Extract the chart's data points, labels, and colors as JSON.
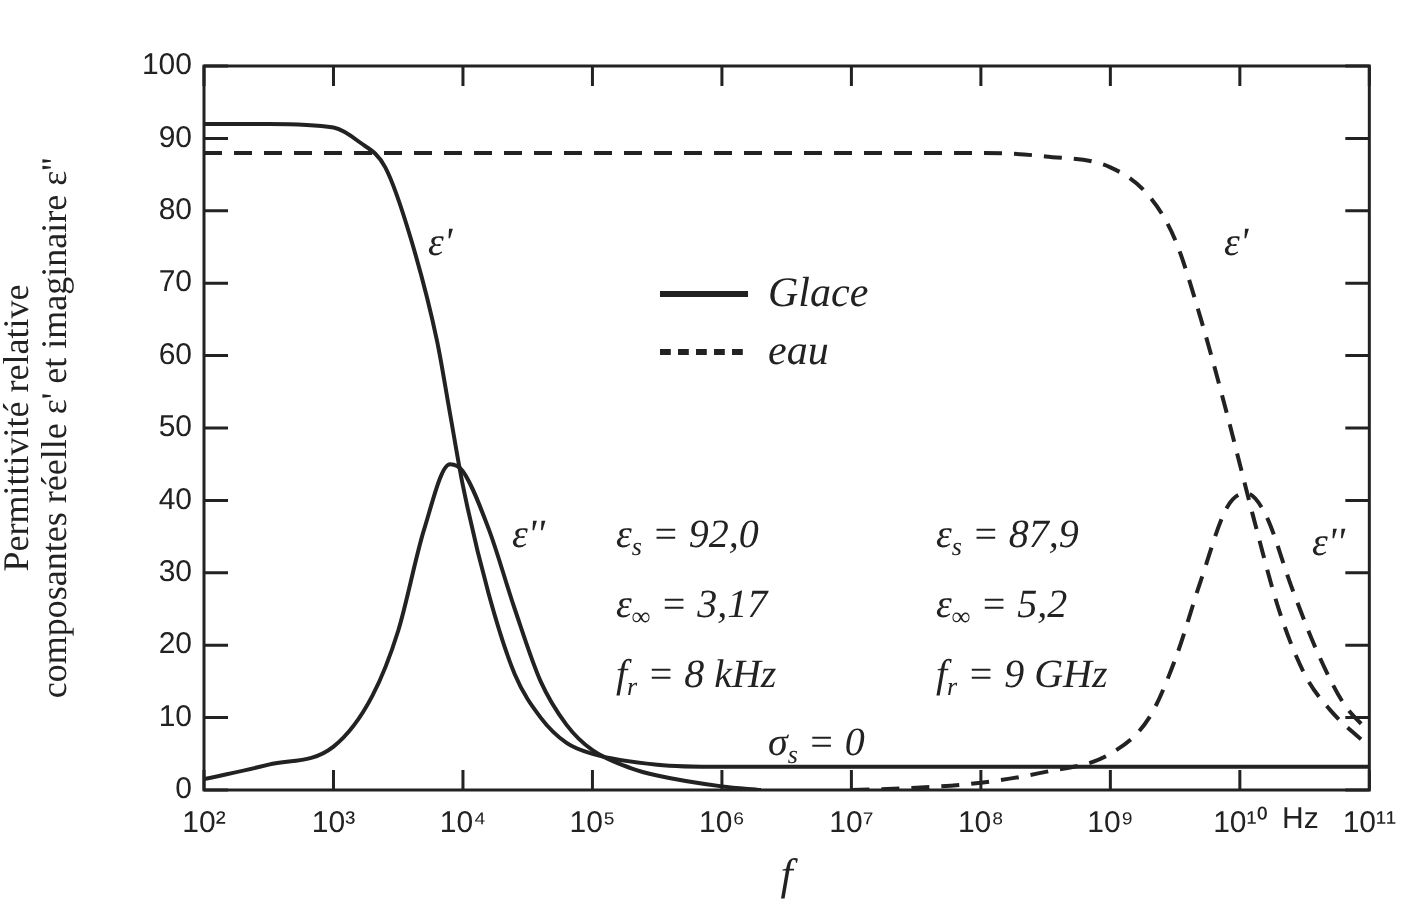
{
  "chart_data": {
    "type": "line",
    "xlabel": "f",
    "ylabel": "Permittivité relative\ncomposantes réelle ε' et imaginaire ε''",
    "log": "x",
    "xlim": [
      100,
      100000000000
    ],
    "xticks": [
      {
        "value": 100,
        "label": "10²"
      },
      {
        "value": 1000,
        "label": "10³"
      },
      {
        "value": 10000,
        "label": "10⁴"
      },
      {
        "value": 100000,
        "label": "10⁵"
      },
      {
        "value": 1000000,
        "label": "10⁶"
      },
      {
        "value": 10000000,
        "label": "10⁷"
      },
      {
        "value": 100000000,
        "label": "10⁸"
      },
      {
        "value": 1000000000,
        "label": "10⁹"
      },
      {
        "value": 10000000000,
        "label": "10¹⁰"
      },
      {
        "value": 100000000000,
        "label": "10¹¹"
      }
    ],
    "ylim": [
      0,
      100
    ],
    "yticks": [
      0,
      10,
      20,
      30,
      40,
      50,
      60,
      70,
      80,
      90,
      100
    ],
    "grid": false,
    "legend": "top",
    "series": [
      {
        "name": "Glace",
        "color": "#222222",
        "line_style": "solid",
        "x": [
          100,
          316,
          1000,
          1585,
          2512,
          3981,
          6310,
          7943,
          10000,
          15849,
          25119,
          39811,
          63096,
          100000,
          316228,
          1000000,
          10000000,
          100000000,
          1000000000,
          10000000000,
          100000000000
        ],
        "values": [
          92,
          92,
          91.5,
          89.5,
          86,
          76,
          62,
          52,
          42,
          27,
          16,
          10,
          6.5,
          5,
          3.5,
          3.2,
          3.2,
          3.2,
          3.2,
          3.2,
          3.2
        ]
      },
      {
        "color": "#222222",
        "line_style": "solid",
        "x": [
          100,
          316,
          1000,
          1995,
          3162,
          5012,
          7943,
          10000,
          15849,
          25119,
          39811,
          63096,
          100000,
          199526,
          316228,
          1000000,
          2000000
        ],
        "values": [
          1.5,
          3.5,
          6,
          13,
          22,
          36,
          45,
          44,
          36,
          25,
          15,
          9,
          5.5,
          3,
          2,
          0.5,
          0
        ]
      },
      {
        "name": "eau",
        "color": "#222222",
        "line_style": "dashed",
        "x": [
          100,
          1000000,
          100000000,
          316227766,
          1000000000,
          1995262315,
          3162277660,
          5011872336,
          7943282347,
          10000000000,
          12589254118,
          19952623150,
          31622776602,
          50118723363,
          100000000000
        ],
        "values": [
          88,
          88,
          88,
          87.5,
          86,
          82,
          76,
          65,
          52,
          45,
          38,
          25,
          16,
          11,
          6
        ]
      },
      {
        "color": "#222222",
        "line_style": "dashed",
        "x": [
          10000000,
          31622777,
          100000000,
          316227766,
          1000000000,
          1995262315,
          3162277660,
          5011872336,
          7943282347,
          11220184543,
          15848931925,
          25118864315,
          39810717055,
          63095734448,
          100000000000
        ],
        "values": [
          0,
          0.3,
          1,
          2.5,
          5,
          10,
          18,
          29,
          39,
          41,
          38,
          28,
          19,
          12,
          8
        ]
      }
    ],
    "annotations": [
      "ε'",
      "ε''",
      "ε'",
      "ε''",
      "ε$_{s}$ = 92,0",
      "ε$_{∞}$ = 3,17",
      "f$_{r}$ = 8 kHz",
      "ε$_{s}$ = 87,9",
      "ε$_{∞}$ = 5,2",
      "f$_{r}$ = 9 GHz",
      "σ$_{s}$ = 0",
      "Hz"
    ]
  }
}
